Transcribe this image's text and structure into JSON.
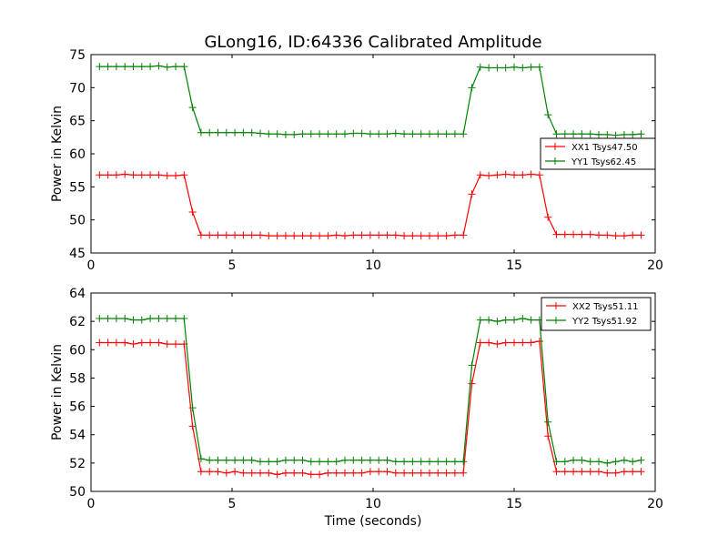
{
  "title": "GLong16, ID:64336 Calibrated Amplitude",
  "chart_data": [
    {
      "type": "line",
      "xlabel": "",
      "ylabel": "Power in Kelvin",
      "xlim": [
        0,
        20
      ],
      "ylim": [
        45,
        75
      ],
      "xticks": [
        0,
        5,
        10,
        15,
        20
      ],
      "yticks": [
        45,
        50,
        55,
        60,
        65,
        70,
        75
      ],
      "grid": false,
      "legend": "center-right",
      "x": [
        0.3,
        0.6,
        0.9,
        1.2,
        1.5,
        1.8,
        2.1,
        2.4,
        2.7,
        3.0,
        3.3,
        3.6,
        3.9,
        4.2,
        4.5,
        4.8,
        5.1,
        5.4,
        5.7,
        6.0,
        6.3,
        6.6,
        6.9,
        7.2,
        7.5,
        7.8,
        8.1,
        8.4,
        8.7,
        9.0,
        9.3,
        9.6,
        9.9,
        10.2,
        10.5,
        10.8,
        11.1,
        11.4,
        11.7,
        12.0,
        12.3,
        12.6,
        12.9,
        13.2,
        13.5,
        13.8,
        14.1,
        14.4,
        14.7,
        15.0,
        15.3,
        15.6,
        15.9,
        16.2,
        16.5,
        16.8,
        17.1,
        17.4,
        17.7,
        18.0,
        18.3,
        18.6,
        18.9,
        19.2,
        19.5
      ],
      "series": [
        {
          "name": "XX1 Tsys47.50",
          "color": "#ff0000",
          "values": [
            56.8,
            56.8,
            56.8,
            56.9,
            56.8,
            56.8,
            56.8,
            56.8,
            56.7,
            56.7,
            56.8,
            51.2,
            47.7,
            47.7,
            47.7,
            47.7,
            47.7,
            47.7,
            47.7,
            47.7,
            47.6,
            47.6,
            47.6,
            47.6,
            47.6,
            47.6,
            47.6,
            47.6,
            47.7,
            47.6,
            47.7,
            47.7,
            47.7,
            47.7,
            47.7,
            47.7,
            47.6,
            47.6,
            47.6,
            47.6,
            47.6,
            47.6,
            47.7,
            47.7,
            53.9,
            56.8,
            56.7,
            56.8,
            56.9,
            56.8,
            56.8,
            56.9,
            56.8,
            50.4,
            47.8,
            47.8,
            47.8,
            47.8,
            47.8,
            47.7,
            47.7,
            47.6,
            47.6,
            47.7,
            47.7
          ]
        },
        {
          "name": "YY1 Tsys62.45",
          "color": "#008000",
          "values": [
            73.2,
            73.2,
            73.2,
            73.2,
            73.2,
            73.2,
            73.2,
            73.3,
            73.1,
            73.2,
            73.2,
            67.0,
            63.2,
            63.2,
            63.2,
            63.2,
            63.2,
            63.2,
            63.2,
            63.1,
            63.0,
            63.0,
            62.9,
            62.9,
            63.0,
            63.0,
            63.0,
            63.0,
            63.0,
            63.0,
            63.1,
            63.1,
            63.0,
            63.0,
            63.0,
            63.1,
            63.0,
            63.0,
            63.0,
            63.0,
            63.0,
            63.0,
            63.0,
            63.0,
            70.0,
            73.1,
            73.0,
            73.0,
            73.0,
            73.1,
            73.0,
            73.1,
            73.1,
            65.9,
            63.0,
            63.0,
            63.0,
            63.0,
            63.0,
            62.9,
            62.9,
            62.8,
            62.9,
            62.9,
            63.0
          ]
        }
      ]
    },
    {
      "type": "line",
      "xlabel": "Time (seconds)",
      "ylabel": "Power in Kelvin",
      "xlim": [
        0,
        20
      ],
      "ylim": [
        50,
        64
      ],
      "xticks": [
        0,
        5,
        10,
        15,
        20
      ],
      "yticks": [
        50,
        52,
        54,
        56,
        58,
        60,
        62,
        64
      ],
      "grid": false,
      "legend": "top-right",
      "x": [
        0.3,
        0.6,
        0.9,
        1.2,
        1.5,
        1.8,
        2.1,
        2.4,
        2.7,
        3.0,
        3.3,
        3.6,
        3.9,
        4.2,
        4.5,
        4.8,
        5.1,
        5.4,
        5.7,
        6.0,
        6.3,
        6.6,
        6.9,
        7.2,
        7.5,
        7.8,
        8.1,
        8.4,
        8.7,
        9.0,
        9.3,
        9.6,
        9.9,
        10.2,
        10.5,
        10.8,
        11.1,
        11.4,
        11.7,
        12.0,
        12.3,
        12.6,
        12.9,
        13.2,
        13.5,
        13.8,
        14.1,
        14.4,
        14.7,
        15.0,
        15.3,
        15.6,
        15.9,
        16.2,
        16.5,
        16.8,
        17.1,
        17.4,
        17.7,
        18.0,
        18.3,
        18.6,
        18.9,
        19.2,
        19.5
      ],
      "series": [
        {
          "name": "XX2 Tsys51.11",
          "color": "#ff0000",
          "values": [
            60.5,
            60.5,
            60.5,
            60.5,
            60.4,
            60.5,
            60.5,
            60.5,
            60.4,
            60.4,
            60.4,
            54.6,
            51.4,
            51.4,
            51.4,
            51.3,
            51.4,
            51.3,
            51.3,
            51.3,
            51.3,
            51.2,
            51.3,
            51.3,
            51.3,
            51.2,
            51.2,
            51.3,
            51.3,
            51.3,
            51.3,
            51.3,
            51.4,
            51.4,
            51.4,
            51.3,
            51.3,
            51.3,
            51.3,
            51.3,
            51.3,
            51.3,
            51.3,
            51.3,
            57.6,
            60.5,
            60.5,
            60.4,
            60.5,
            60.5,
            60.5,
            60.5,
            60.6,
            53.9,
            51.4,
            51.4,
            51.4,
            51.4,
            51.4,
            51.4,
            51.3,
            51.3,
            51.4,
            51.4,
            51.4
          ]
        },
        {
          "name": "YY2 Tsys51.92",
          "color": "#008000",
          "values": [
            62.2,
            62.2,
            62.2,
            62.2,
            62.1,
            62.1,
            62.2,
            62.2,
            62.2,
            62.2,
            62.2,
            55.9,
            52.3,
            52.2,
            52.2,
            52.2,
            52.2,
            52.2,
            52.2,
            52.1,
            52.1,
            52.1,
            52.2,
            52.2,
            52.2,
            52.1,
            52.1,
            52.1,
            52.1,
            52.2,
            52.2,
            52.2,
            52.2,
            52.2,
            52.2,
            52.1,
            52.1,
            52.1,
            52.1,
            52.1,
            52.1,
            52.1,
            52.1,
            52.1,
            58.9,
            62.1,
            62.1,
            62.0,
            62.1,
            62.1,
            62.2,
            62.1,
            62.1,
            54.9,
            52.1,
            52.1,
            52.2,
            52.2,
            52.1,
            52.1,
            52.0,
            52.1,
            52.2,
            52.1,
            52.2
          ]
        }
      ]
    }
  ]
}
